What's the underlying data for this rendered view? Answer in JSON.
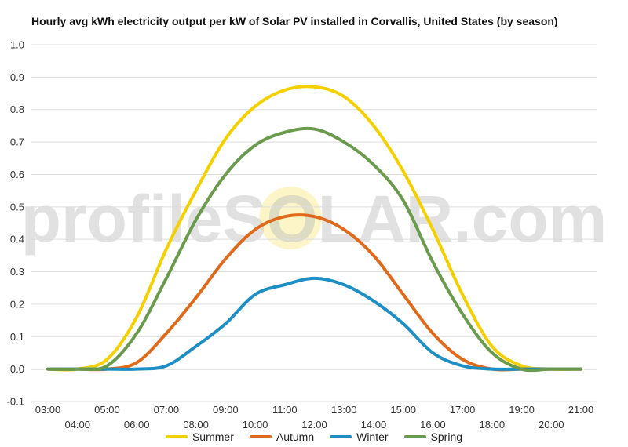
{
  "chart_data": {
    "type": "line",
    "title": "Hourly avg kWh electricity output per kW of Solar PV installed in Corvallis, United States (by season)",
    "watermark": "profileSOLAR.com",
    "xlabel": "",
    "ylabel": "",
    "ylim": [
      -0.1,
      1.0
    ],
    "yticks": [
      "1.0",
      "0.9",
      "0.8",
      "0.7",
      "0.6",
      "0.5",
      "0.4",
      "0.3",
      "0.2",
      "0.1",
      "0.0",
      "-0.1"
    ],
    "categories": [
      "03:00",
      "04:00",
      "05:00",
      "06:00",
      "07:00",
      "08:00",
      "09:00",
      "10:00",
      "11:00",
      "12:00",
      "13:00",
      "14:00",
      "15:00",
      "16:00",
      "17:00",
      "18:00",
      "19:00",
      "20:00",
      "21:00"
    ],
    "grid": true,
    "legend_position": "bottom",
    "series": [
      {
        "name": "Summer",
        "color": "#f5d000",
        "values": [
          0.0,
          0.0,
          0.03,
          0.16,
          0.37,
          0.55,
          0.71,
          0.81,
          0.86,
          0.87,
          0.84,
          0.75,
          0.61,
          0.43,
          0.23,
          0.07,
          0.01,
          0.0,
          0.0
        ]
      },
      {
        "name": "Autumn",
        "color": "#e06a1b",
        "values": [
          0.0,
          0.0,
          0.0,
          0.02,
          0.11,
          0.22,
          0.34,
          0.43,
          0.47,
          0.47,
          0.43,
          0.35,
          0.23,
          0.11,
          0.03,
          0.0,
          0.0,
          0.0,
          0.0
        ]
      },
      {
        "name": "Winter",
        "color": "#1e8fc4",
        "values": [
          0.0,
          0.0,
          0.0,
          0.0,
          0.01,
          0.07,
          0.14,
          0.23,
          0.26,
          0.28,
          0.26,
          0.21,
          0.14,
          0.05,
          0.01,
          0.0,
          0.0,
          0.0,
          0.0
        ]
      },
      {
        "name": "Spring",
        "color": "#6a9a4c",
        "values": [
          0.0,
          0.0,
          0.01,
          0.11,
          0.28,
          0.46,
          0.6,
          0.69,
          0.73,
          0.74,
          0.7,
          0.63,
          0.52,
          0.33,
          0.17,
          0.05,
          0.0,
          0.0,
          0.0
        ]
      }
    ]
  }
}
